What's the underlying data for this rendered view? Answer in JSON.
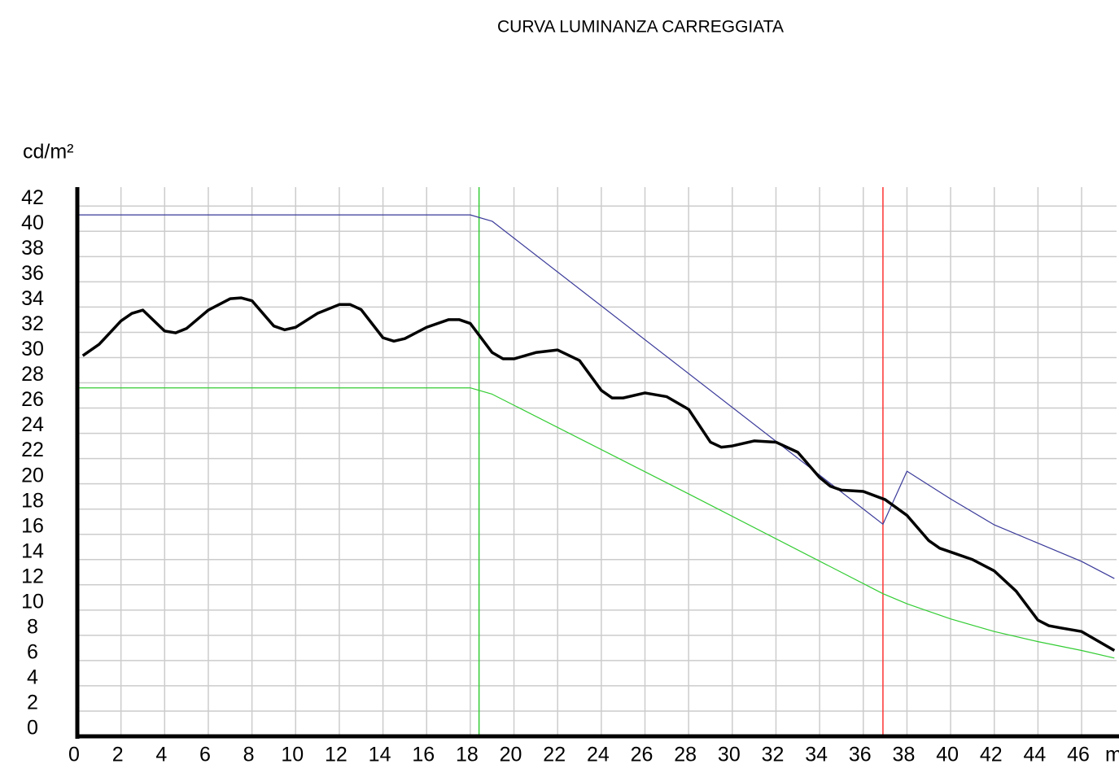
{
  "chart_data": {
    "type": "line",
    "title": "CURVA  LUMINANZA  CARREGGIATA",
    "ylabel": "cd/m²",
    "xlabel": "m",
    "xlim": [
      0,
      47.6
    ],
    "ylim": [
      0,
      43.5
    ],
    "xticks": [
      0,
      2,
      4,
      6,
      8,
      10,
      12,
      14,
      16,
      18,
      20,
      22,
      24,
      26,
      28,
      30,
      32,
      34,
      36,
      38,
      40,
      42,
      44,
      46
    ],
    "yticks": [
      0,
      2,
      4,
      6,
      8,
      10,
      12,
      14,
      16,
      18,
      20,
      22,
      24,
      26,
      28,
      30,
      32,
      34,
      36,
      38,
      40,
      42
    ],
    "grid": true,
    "markers": [
      {
        "x": 18.4,
        "color": "#33cc33"
      },
      {
        "x": 36.9,
        "color": "#ff3333"
      }
    ],
    "series": [
      {
        "color": "#3a3a9a",
        "width": 1.2,
        "x": [
          0,
          18,
          19,
          36.9,
          38,
          40,
          42,
          44,
          46,
          47.5
        ],
        "values": [
          41.3,
          41.3,
          40.8,
          16.8,
          21.0,
          18.8,
          16.75,
          15.3,
          13.85,
          12.5
        ]
      },
      {
        "color": "#33cc33",
        "width": 1.2,
        "x": [
          0,
          18,
          19,
          28,
          36.9,
          38,
          40,
          42,
          44,
          46,
          47.5
        ],
        "values": [
          27.6,
          27.6,
          27.1,
          19.2,
          11.3,
          10.5,
          9.3,
          8.3,
          7.5,
          6.8,
          6.2
        ]
      },
      {
        "color": "#000000",
        "width": 3.5,
        "x": [
          0.25,
          1,
          2,
          2.5,
          3,
          4,
          4.5,
          5,
          6,
          7,
          7.5,
          8,
          9,
          9.5,
          10,
          11,
          12,
          12.5,
          13,
          14,
          14.5,
          15,
          16,
          17,
          17.5,
          18,
          19,
          19.5,
          20,
          21,
          22,
          23,
          24,
          24.5,
          25,
          26,
          27,
          28,
          29,
          29.5,
          30,
          31,
          32,
          33,
          34,
          34.5,
          35,
          36,
          37,
          38,
          39,
          39.5,
          40,
          41,
          42,
          43,
          44,
          44.5,
          45,
          46,
          47.5
        ],
        "values": [
          30.15,
          31.05,
          32.9,
          33.5,
          33.76,
          32.1,
          31.96,
          32.3,
          33.76,
          34.66,
          34.73,
          34.5,
          32.5,
          32.2,
          32.4,
          33.5,
          34.2,
          34.2,
          33.8,
          31.57,
          31.3,
          31.5,
          32.4,
          33.0,
          33.0,
          32.7,
          30.4,
          29.9,
          29.9,
          30.4,
          30.6,
          29.77,
          27.4,
          26.8,
          26.8,
          27.2,
          26.9,
          25.9,
          23.3,
          22.9,
          23.0,
          23.4,
          23.3,
          22.5,
          20.5,
          19.8,
          19.5,
          19.4,
          18.75,
          17.5,
          15.5,
          14.9,
          14.6,
          14.0,
          13.1,
          11.5,
          9.2,
          8.76,
          8.6,
          8.3,
          6.8
        ]
      }
    ]
  }
}
